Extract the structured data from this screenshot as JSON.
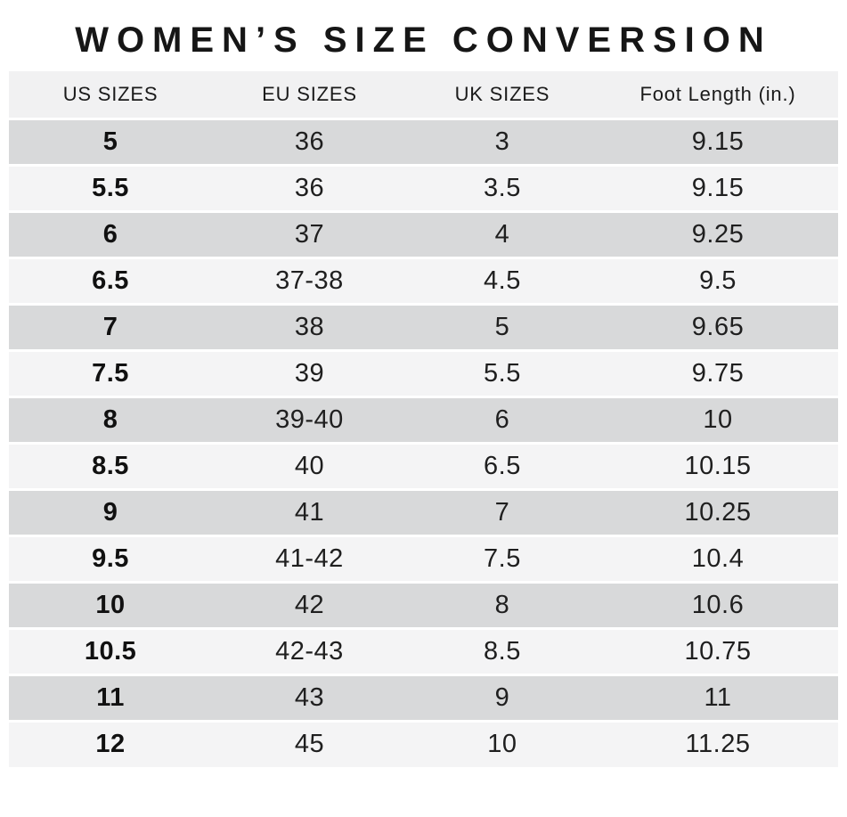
{
  "chart_data": {
    "type": "table",
    "title": "WOMEN’S SIZE CONVERSION",
    "columns": [
      "US SIZES",
      "EU SIZES",
      "UK SIZES",
      "Foot Length (in.)"
    ],
    "rows": [
      [
        "5",
        "36",
        "3",
        "9.15"
      ],
      [
        "5.5",
        "36",
        "3.5",
        "9.15"
      ],
      [
        "6",
        "37",
        "4",
        "9.25"
      ],
      [
        "6.5",
        "37-38",
        "4.5",
        "9.5"
      ],
      [
        "7",
        "38",
        "5",
        "9.65"
      ],
      [
        "7.5",
        "39",
        "5.5",
        "9.75"
      ],
      [
        "8",
        "39-40",
        "6",
        "10"
      ],
      [
        "8.5",
        "40",
        "6.5",
        "10.15"
      ],
      [
        "9",
        "41",
        "7",
        "10.25"
      ],
      [
        "9.5",
        "41-42",
        "7.5",
        "10.4"
      ],
      [
        "10",
        "42",
        "8",
        "10.6"
      ],
      [
        "10.5",
        "42-43",
        "8.5",
        "10.75"
      ],
      [
        "11",
        "43",
        "9",
        "11"
      ],
      [
        "12",
        "45",
        "10",
        "11.25"
      ]
    ],
    "layout": {
      "row_striping": "odd-gray-even-light",
      "bold_column": "US SIZES"
    }
  },
  "colors": {
    "page_bg": "#ffffff",
    "header_bg": "#f1f1f2",
    "row_odd_bg": "#d8d9da",
    "row_even_bg": "#f4f4f5",
    "text": "#1f1f1f",
    "title_text": "#161616"
  }
}
